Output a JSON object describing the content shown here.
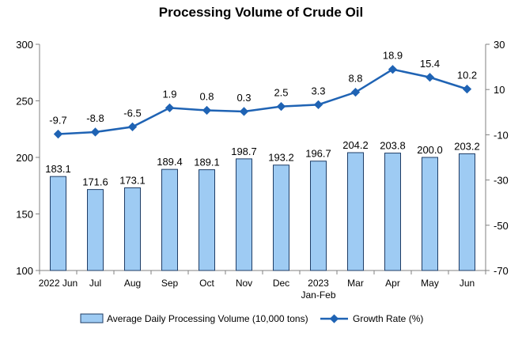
{
  "chart_data": {
    "type": "bar",
    "title": "Processing Volume of Crude Oil",
    "categories": [
      "2022 Jun",
      "Jul",
      "Aug",
      "Sep",
      "Oct",
      "Nov",
      "Dec",
      "2023\nJan-Feb",
      "Mar",
      "Apr",
      "May",
      "Jun"
    ],
    "series": [
      {
        "name": "Average Daily Processing Volume (10,000 tons)",
        "type": "bar",
        "axis": "left",
        "color": "#9ecbf3",
        "values": [
          183.1,
          171.6,
          173.1,
          189.4,
          189.1,
          198.7,
          193.2,
          196.7,
          204.2,
          203.8,
          200.0,
          203.2
        ],
        "labels": [
          "183.1",
          "171.6",
          "173.1",
          "189.4",
          "189.1",
          "198.7",
          "193.2",
          "196.7",
          "204.2",
          "203.8",
          "200.0",
          "203.2"
        ]
      },
      {
        "name": "Growth Rate (%)",
        "type": "line",
        "axis": "right",
        "color": "#1f63b4",
        "values": [
          -9.7,
          -8.8,
          -6.5,
          1.9,
          0.8,
          0.3,
          2.5,
          3.3,
          8.8,
          18.9,
          15.4,
          10.2
        ],
        "labels": [
          "-9.7",
          "-8.8",
          "-6.5",
          "1.9",
          "0.8",
          "0.3",
          "2.5",
          "3.3",
          "8.8",
          "18.9",
          "15.4",
          "10.2"
        ]
      }
    ],
    "y_left": {
      "ylim": [
        100,
        300
      ],
      "ticks": [
        100,
        150,
        200,
        250,
        300
      ]
    },
    "y_right": {
      "ylim": [
        -70,
        30
      ],
      "ticks": [
        -70,
        -50,
        -30,
        -10,
        10,
        30
      ]
    },
    "grid": false,
    "legend_position": "bottom"
  }
}
